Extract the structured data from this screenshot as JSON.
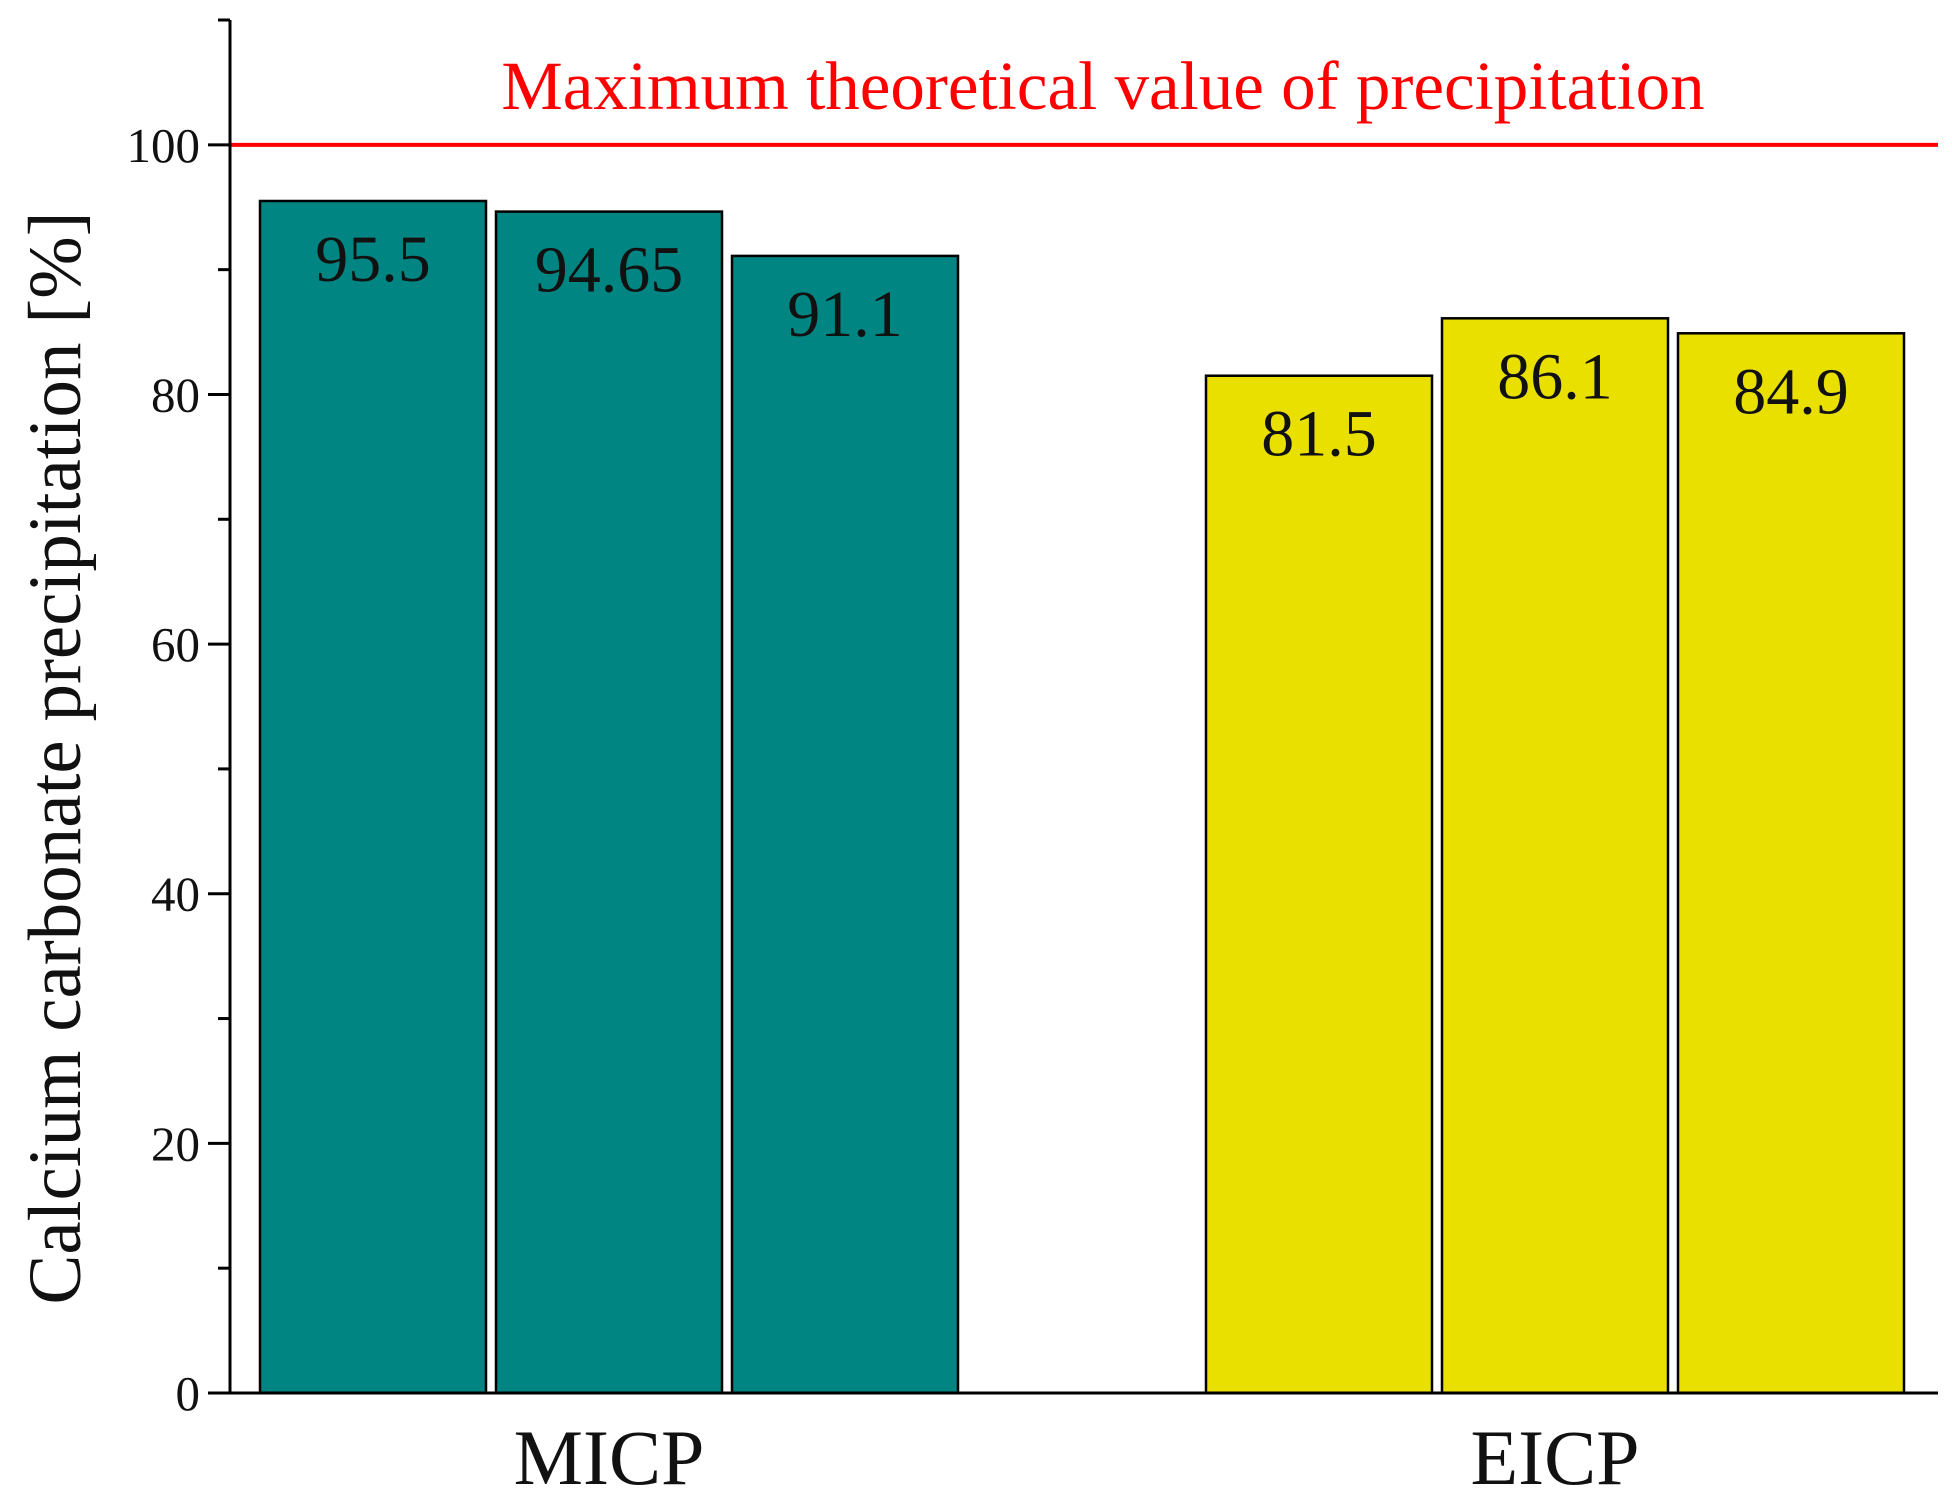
{
  "chart_data": {
    "type": "bar",
    "title": "",
    "xlabel": "",
    "ylabel": "Calcium carbonate precipitation [%]",
    "ylim": [
      0,
      110
    ],
    "yticks": [
      0,
      20,
      40,
      60,
      80,
      100
    ],
    "yticks_minor_step": 10,
    "grid": false,
    "categories": [
      "MICP",
      "EICP"
    ],
    "groups": [
      {
        "category": "MICP",
        "color": "#008582",
        "values": [
          95.5,
          94.65,
          91.1
        ],
        "labels": [
          "95.5",
          "94.65",
          "91.1"
        ]
      },
      {
        "category": "EICP",
        "color": "#EAE000",
        "values": [
          81.5,
          86.1,
          84.9
        ],
        "labels": [
          "81.5",
          "86.1",
          "84.9"
        ]
      }
    ],
    "reference_line": {
      "value": 100,
      "label": "Maximum theoretical value of precipitation",
      "color": "#FF0000"
    }
  }
}
